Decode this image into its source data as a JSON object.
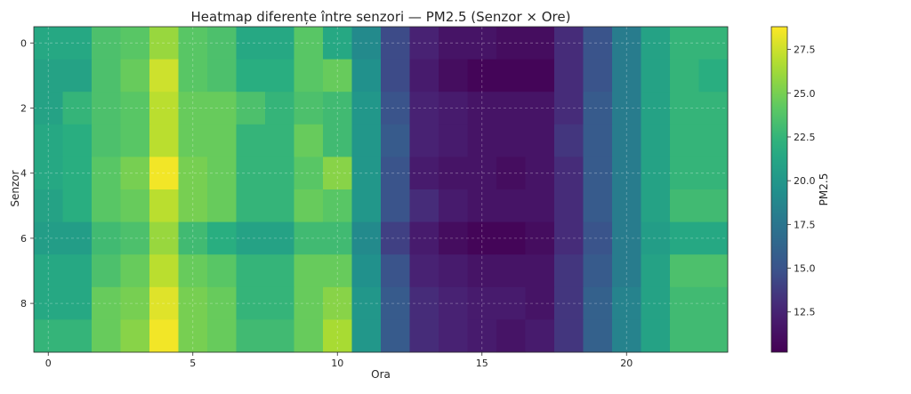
{
  "chart_data": {
    "type": "heatmap",
    "title": "Heatmap diferențe între senzori — PM2.5 (Senzor × Ore)",
    "xlabel": "Ora",
    "ylabel": "Senzor",
    "colorbar_label": "PM2.5",
    "colormap": "viridis",
    "x_ticks": [
      0,
      5,
      10,
      15,
      20
    ],
    "y_ticks": [
      0,
      2,
      4,
      6,
      8
    ],
    "colorbar_ticks": [
      12.5,
      15.0,
      17.5,
      20.0,
      22.5,
      25.0,
      27.5
    ],
    "x_values": [
      0,
      1,
      2,
      3,
      4,
      5,
      6,
      7,
      8,
      9,
      10,
      11,
      12,
      13,
      14,
      15,
      16,
      17,
      18,
      19,
      20,
      21,
      22,
      23
    ],
    "y_values": [
      0,
      1,
      2,
      3,
      4,
      5,
      6,
      7,
      8,
      9
    ],
    "vmin": 10.2,
    "vmax": 28.8,
    "grid": true,
    "z": [
      [
        21.5,
        21.5,
        23.5,
        24.0,
        26.0,
        24.0,
        23.5,
        21.5,
        21.5,
        24.0,
        21.5,
        19.0,
        14.5,
        12.5,
        11.5,
        11.5,
        11.0,
        11.0,
        13.0,
        15.0,
        18.0,
        21.0,
        22.5,
        22.5
      ],
      [
        21.0,
        21.0,
        23.5,
        24.5,
        27.5,
        24.0,
        23.5,
        22.0,
        22.0,
        24.0,
        24.5,
        19.5,
        14.5,
        12.0,
        11.0,
        10.5,
        10.5,
        10.5,
        13.0,
        15.0,
        18.0,
        21.0,
        22.5,
        22.0
      ],
      [
        21.0,
        22.5,
        23.5,
        24.0,
        27.0,
        24.5,
        24.5,
        23.5,
        22.5,
        23.5,
        23.0,
        20.0,
        15.0,
        12.5,
        12.0,
        11.5,
        11.5,
        11.5,
        13.0,
        15.5,
        18.0,
        21.0,
        22.5,
        22.5
      ],
      [
        21.5,
        22.0,
        23.5,
        24.0,
        27.0,
        24.5,
        24.5,
        22.5,
        22.5,
        24.5,
        23.0,
        20.0,
        15.5,
        12.5,
        12.0,
        11.5,
        11.5,
        11.5,
        13.5,
        15.5,
        18.0,
        21.0,
        22.5,
        22.5
      ],
      [
        21.5,
        22.0,
        24.0,
        25.0,
        28.5,
        25.0,
        24.5,
        22.5,
        22.5,
        24.0,
        25.5,
        20.0,
        15.0,
        12.0,
        11.5,
        11.5,
        11.0,
        11.5,
        13.0,
        15.5,
        18.0,
        21.0,
        22.5,
        22.5
      ],
      [
        21.0,
        22.0,
        24.0,
        24.5,
        27.0,
        25.0,
        24.5,
        22.5,
        22.5,
        24.5,
        24.0,
        20.0,
        15.0,
        13.0,
        12.0,
        11.5,
        11.5,
        11.5,
        13.0,
        15.5,
        18.0,
        21.0,
        23.0,
        23.0
      ],
      [
        20.5,
        20.5,
        23.0,
        23.5,
        26.0,
        23.0,
        22.0,
        21.0,
        21.0,
        23.0,
        23.0,
        19.0,
        14.0,
        12.0,
        11.0,
        10.5,
        10.5,
        11.0,
        13.0,
        15.0,
        18.0,
        20.5,
        21.5,
        21.5
      ],
      [
        21.5,
        21.5,
        23.5,
        24.5,
        27.0,
        24.5,
        24.0,
        22.5,
        22.5,
        24.5,
        24.5,
        19.5,
        15.0,
        12.5,
        12.0,
        11.5,
        11.5,
        11.5,
        13.5,
        15.5,
        18.0,
        21.0,
        23.5,
        23.5
      ],
      [
        21.5,
        21.5,
        24.5,
        25.0,
        28.0,
        25.0,
        24.5,
        22.5,
        22.5,
        24.5,
        25.5,
        20.0,
        15.5,
        13.0,
        12.5,
        12.0,
        12.0,
        11.5,
        13.5,
        16.0,
        18.5,
        21.0,
        23.0,
        23.0
      ],
      [
        22.5,
        22.5,
        24.5,
        25.5,
        28.5,
        25.0,
        24.5,
        23.0,
        23.0,
        24.5,
        26.5,
        20.0,
        15.5,
        13.0,
        12.5,
        12.0,
        11.5,
        12.0,
        13.5,
        16.0,
        18.5,
        21.0,
        23.0,
        23.0
      ]
    ]
  }
}
